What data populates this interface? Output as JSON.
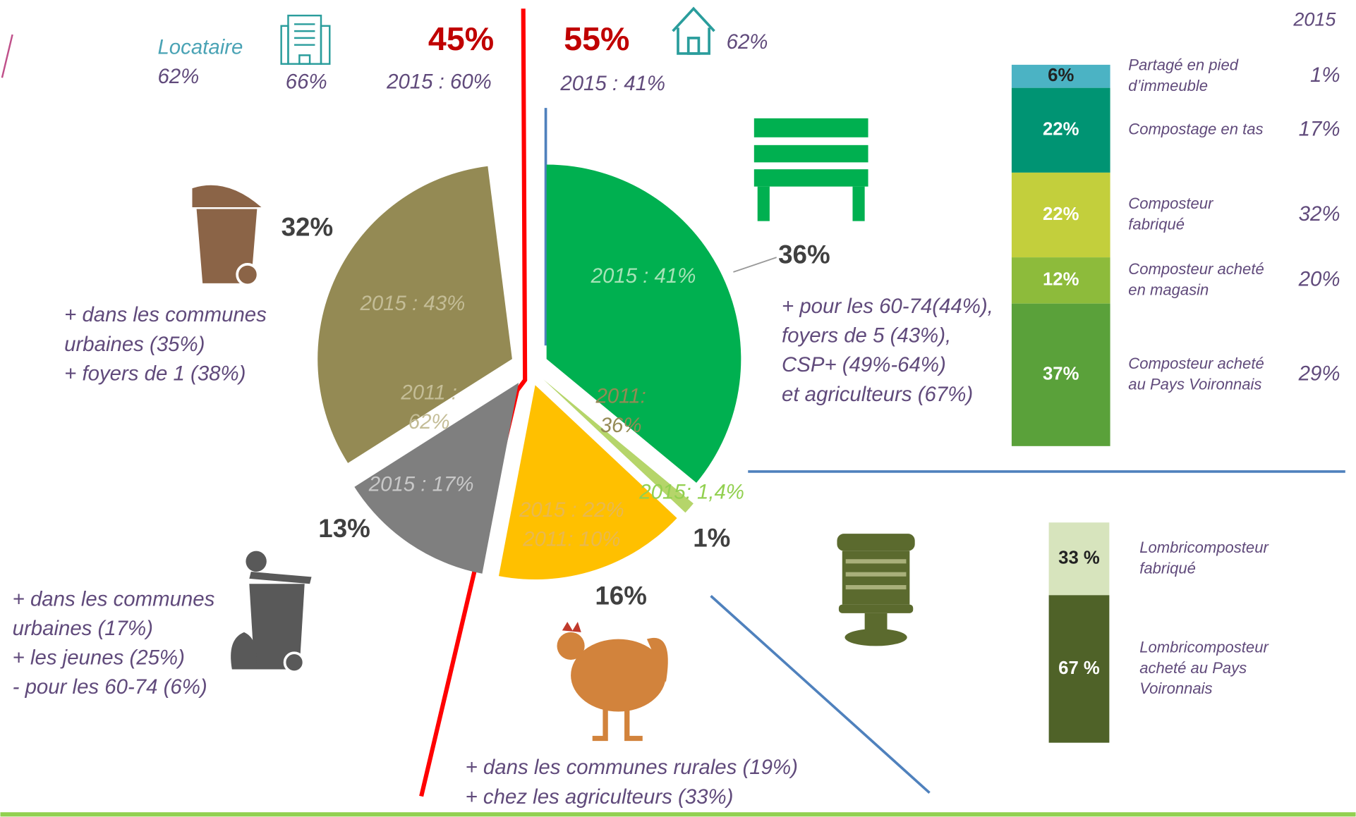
{
  "header": {
    "tenant_label": "Locataire",
    "tenant_share": "62%",
    "building_share": "66%",
    "left_total": "45%",
    "left_total_2015": "2015 : 60%",
    "right_total": "55%",
    "right_total_2015": "2015 : 41%",
    "house_share": "62%"
  },
  "chart_data": [
    {
      "type": "pie",
      "values": [
        32,
        13,
        16,
        1,
        36
      ],
      "value_labels": [
        "32%",
        "13%",
        "16%",
        "1%",
        "36%"
      ],
      "colors": [
        "#948a54",
        "#7f7f7f",
        "#ffc000",
        "#b5d56a",
        "#00b050"
      ],
      "slice_notes": [
        [
          "2015 : 43%"
        ],
        [
          "2015 : 17%"
        ],
        [
          "2015 : 22%",
          "2011: 10%"
        ],
        [
          "2015: 1,4%"
        ],
        [
          "2015 : 41%"
        ],
        [
          "2011 :",
          "62%"
        ],
        [
          "2011:",
          "36%"
        ]
      ]
    },
    {
      "type": "stacked_bar",
      "categories": [
        [
          "Partagé en pied",
          "d’immeuble"
        ],
        [
          "Compostage en tas"
        ],
        [
          "Composteur",
          "fabriqué"
        ],
        [
          "Composteur acheté",
          "en magasin"
        ],
        [
          "Composteur acheté",
          "au Pays Voironnais"
        ]
      ],
      "values": [
        6,
        22,
        22,
        12,
        37
      ],
      "value_labels": [
        "6%",
        "22%",
        "22%",
        "12%",
        "37%"
      ],
      "colors": [
        "#4bb3c4",
        "#009473",
        "#c3cf3c",
        "#8dbb3b",
        "#5aa13a"
      ],
      "comparison": {
        "name": "2015",
        "values": [
          1,
          17,
          32,
          20,
          29
        ],
        "value_labels": [
          "1%",
          "17%",
          "32%",
          "20%",
          "29%"
        ]
      }
    },
    {
      "type": "stacked_bar",
      "categories": [
        [
          "Lombricomposteur",
          "fabriqué"
        ],
        [
          "Lombricomposteur",
          "acheté au Pays",
          "Voironnais"
        ]
      ],
      "values": [
        33,
        67
      ],
      "value_labels": [
        "33 %",
        "67 %"
      ],
      "colors": [
        "#d7e4bd",
        "#4f6228"
      ]
    }
  ],
  "notes": [
    [
      "+ dans les communes",
      "urbaines (35%)",
      "+ foyers de 1 (38%)"
    ],
    [
      "+ dans les communes",
      "urbaines (17%)",
      "+ les jeunes (25%)",
      "- pour les 60-74 (6%)"
    ],
    [
      "+ dans les communes rurales (19%)",
      "+ chez les agriculteurs (33%)"
    ],
    [
      "+ pour les 60-74(44%),",
      "foyers de 5 (43%),",
      "CSP+ (49%-64%)",
      "et agriculteurs (67%)"
    ]
  ]
}
